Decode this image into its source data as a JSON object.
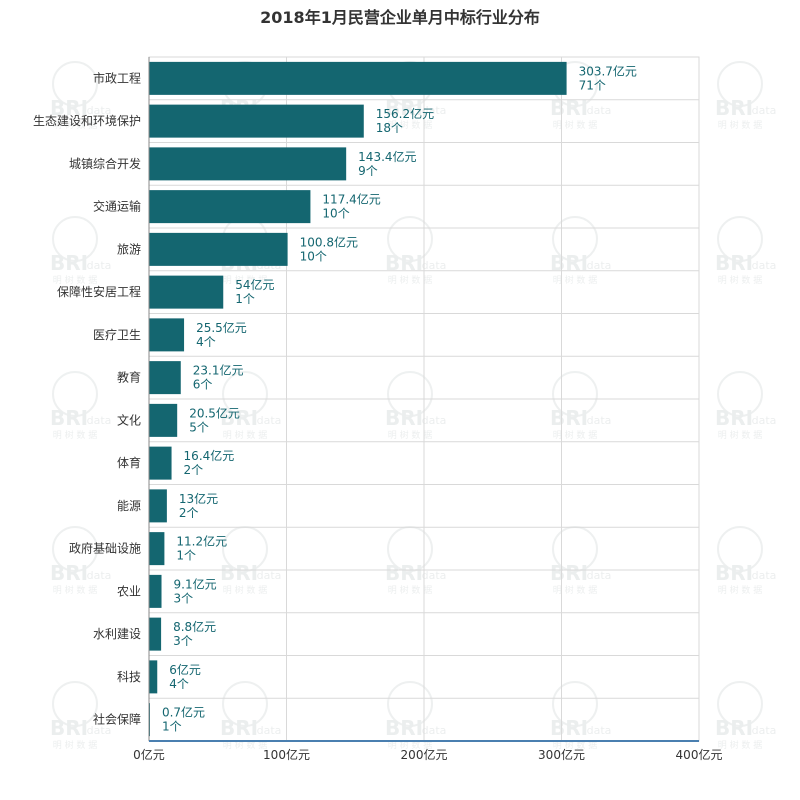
{
  "chart_data": {
    "type": "bar",
    "orientation": "horizontal",
    "title": "2018年1月民营企业单月中标行业分布",
    "categories": [
      "市政工程",
      "生态建设和环境保护",
      "城镇综合开发",
      "交通运输",
      "旅游",
      "保障性安居工程",
      "医疗卫生",
      "教育",
      "文化",
      "体育",
      "能源",
      "政府基础设施",
      "农业",
      "水利建设",
      "科技",
      "社会保障"
    ],
    "values": [
      303.7,
      156.2,
      143.4,
      117.4,
      100.8,
      54,
      25.5,
      23.1,
      20.5,
      16.4,
      13,
      11.2,
      9.1,
      8.8,
      6,
      0.7
    ],
    "counts": [
      71,
      18,
      9,
      10,
      10,
      1,
      4,
      6,
      5,
      2,
      2,
      1,
      3,
      3,
      4,
      1
    ],
    "value_labels": [
      "303.7亿元",
      "156.2亿元",
      "143.4亿元",
      "117.4亿元",
      "100.8亿元",
      "54亿元",
      "25.5亿元",
      "23.1亿元",
      "20.5亿元",
      "16.4亿元",
      "13亿元",
      "11.2亿元",
      "9.1亿元",
      "8.8亿元",
      "6亿元",
      "0.7亿元"
    ],
    "count_labels": [
      "71个",
      "18个",
      "9个",
      "10个",
      "10个",
      "1个",
      "4个",
      "6个",
      "5个",
      "2个",
      "2个",
      "1个",
      "3个",
      "3个",
      "4个",
      "1个"
    ],
    "xlim": [
      0,
      400
    ],
    "x_ticks": [
      0,
      100,
      200,
      300,
      400
    ],
    "x_tick_labels": [
      "0亿元",
      "100亿元",
      "200亿元",
      "300亿元",
      "400亿元"
    ],
    "grid": true,
    "colors": {
      "bar": "#146670",
      "label": "#146670",
      "grid": "#d9d9d9",
      "axis": "#4a7fb0"
    }
  },
  "watermark": {
    "brand": "BRI",
    "suffix": "data",
    "sub": "明 树 数 据"
  }
}
